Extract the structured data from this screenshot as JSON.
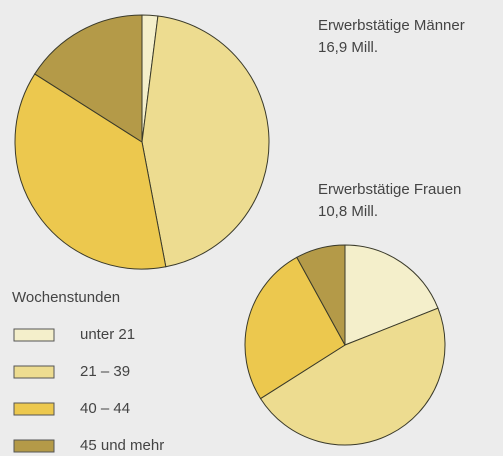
{
  "chart_data": [
    {
      "type": "pie",
      "title": "Erwerbstätige Männer",
      "subtitle": "16,9 Mill.",
      "categories": [
        "unter 21",
        "21 – 39",
        "40 – 44",
        "45 und mehr"
      ],
      "values": [
        2,
        45,
        37,
        16
      ],
      "colors": [
        "#f4efcb",
        "#eddc90",
        "#ecc84e",
        "#b49a48"
      ],
      "legend_title": "Wochenstunden"
    },
    {
      "type": "pie",
      "title": "Erwerbstätige Frauen",
      "subtitle": "10,8 Mill.",
      "categories": [
        "unter 21",
        "21 – 39",
        "40 – 44",
        "45 und mehr"
      ],
      "values": [
        19,
        47,
        26,
        8
      ],
      "colors": [
        "#f4efcb",
        "#eddc90",
        "#ecc84e",
        "#b49a48"
      ]
    }
  ]
}
